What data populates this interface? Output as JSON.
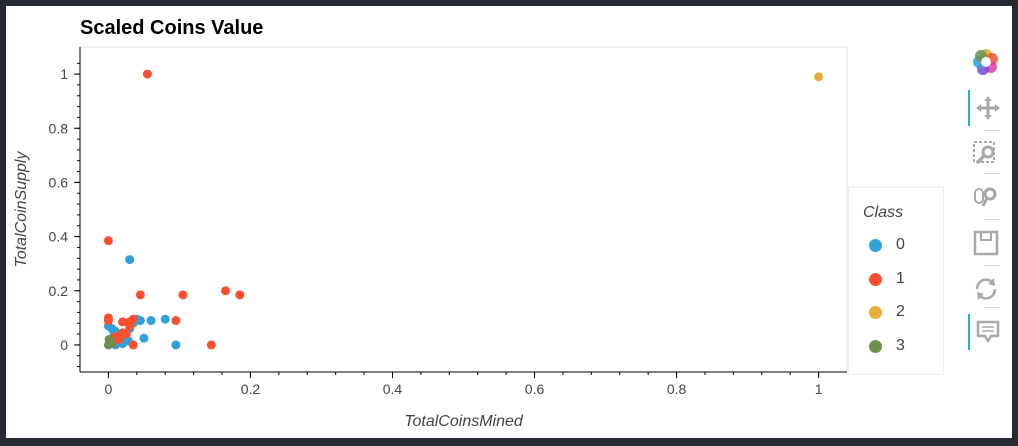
{
  "chart_data": {
    "type": "scatter",
    "title": "Scaled Coins Value",
    "xlabel": "TotalCoinsMined",
    "ylabel": "TotalCoinSupply",
    "xlim": [
      -0.04,
      1.04
    ],
    "ylim": [
      -0.1,
      1.1
    ],
    "xticks": [
      0,
      0.2,
      0.4,
      0.6,
      0.8,
      1
    ],
    "xtick_labels": [
      "0",
      "0.2",
      "0.4",
      "0.6",
      "0.8",
      "1"
    ],
    "yticks": [
      0,
      0.2,
      0.4,
      0.6,
      0.8,
      1
    ],
    "ytick_labels": [
      "0",
      "0.2",
      "0.4",
      "0.6",
      "0.8",
      "1"
    ],
    "grid": false,
    "legend_title": "Class",
    "legend_position": "right",
    "series": [
      {
        "name": "0",
        "color": "#30a2da",
        "points": [
          [
            0.0,
            0.07
          ],
          [
            0.005,
            0.06
          ],
          [
            0.01,
            0.05
          ],
          [
            0.012,
            0.03
          ],
          [
            0.015,
            0.02
          ],
          [
            0.02,
            0.01
          ],
          [
            0.025,
            0.04
          ],
          [
            0.03,
            0.06
          ],
          [
            0.035,
            0.08
          ],
          [
            0.04,
            0.095
          ],
          [
            0.045,
            0.09
          ],
          [
            0.03,
            0.315
          ],
          [
            0.06,
            0.09
          ],
          [
            0.08,
            0.095
          ],
          [
            0.05,
            0.025
          ],
          [
            0.095,
            0.0
          ],
          [
            0.01,
            0.0
          ],
          [
            0.02,
            0.005
          ],
          [
            0.008,
            0.045
          ],
          [
            0.018,
            0.035
          ],
          [
            0.028,
            0.015
          ],
          [
            0.004,
            0.01
          ]
        ]
      },
      {
        "name": "1",
        "color": "#fc4f30",
        "points": [
          [
            0.055,
            1.0
          ],
          [
            0.0,
            0.385
          ],
          [
            0.0,
            0.1
          ],
          [
            0.0,
            0.09
          ],
          [
            0.045,
            0.185
          ],
          [
            0.105,
            0.185
          ],
          [
            0.165,
            0.2
          ],
          [
            0.185,
            0.185
          ],
          [
            0.095,
            0.09
          ],
          [
            0.145,
            0.0
          ],
          [
            0.035,
            0.0
          ],
          [
            0.02,
            0.085
          ],
          [
            0.03,
            0.085
          ],
          [
            0.035,
            0.095
          ],
          [
            0.025,
            0.04
          ],
          [
            0.015,
            0.02
          ],
          [
            0.005,
            0.005
          ],
          [
            0.03,
            0.07
          ],
          [
            0.01,
            0.03
          ],
          [
            0.02,
            0.045
          ]
        ]
      },
      {
        "name": "2",
        "color": "#e5ae38",
        "points": [
          [
            1.0,
            0.99
          ]
        ]
      },
      {
        "name": "3",
        "color": "#6d904f",
        "points": [
          [
            0.0,
            0.0
          ],
          [
            0.002,
            0.01
          ],
          [
            0.004,
            0.005
          ],
          [
            0.001,
            0.02
          ]
        ]
      }
    ]
  },
  "toolbar": {
    "tools": [
      {
        "icon": "bokeh-logo-icon",
        "name": "bokeh-logo-icon",
        "active": false
      },
      {
        "icon": "pan-icon",
        "name": "pan-tool-button",
        "active": true
      },
      {
        "icon": "box-zoom-icon",
        "name": "box-zoom-tool-button",
        "active": false
      },
      {
        "icon": "wheel-zoom-icon",
        "name": "wheel-zoom-tool-button",
        "active": false
      },
      {
        "icon": "save-icon",
        "name": "save-tool-button",
        "active": false
      },
      {
        "icon": "reset-icon",
        "name": "reset-tool-button",
        "active": false
      },
      {
        "icon": "hover-icon",
        "name": "hover-tool-button",
        "active": true
      }
    ]
  }
}
